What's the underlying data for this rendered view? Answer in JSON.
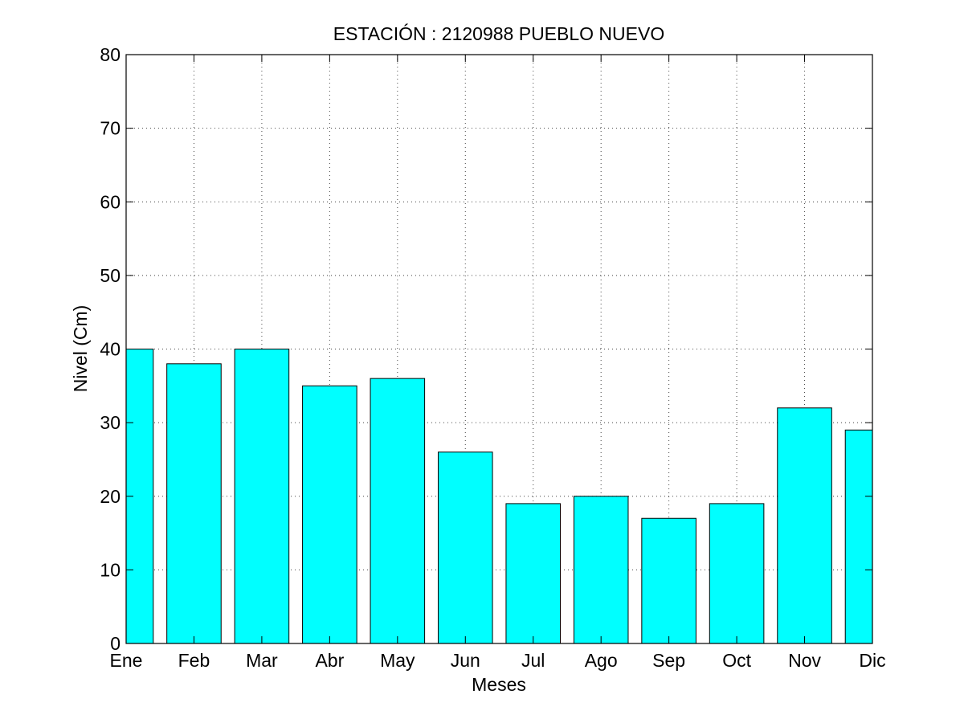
{
  "chart_data": {
    "type": "bar",
    "title": "ESTACIÓN :  2120988  PUEBLO NUEVO",
    "xlabel": "Meses",
    "ylabel": "Nivel (Cm)",
    "categories": [
      "Ene",
      "Feb",
      "Mar",
      "Abr",
      "May",
      "Jun",
      "Jul",
      "Ago",
      "Sep",
      "Oct",
      "Nov",
      "Dic"
    ],
    "values": [
      40,
      38,
      40,
      35,
      36,
      26,
      19,
      20,
      17,
      19,
      32,
      29
    ],
    "ylim": [
      0,
      80
    ],
    "yticks": [
      0,
      10,
      20,
      30,
      40,
      50,
      60,
      70,
      80
    ],
    "xlim": [
      1,
      12
    ],
    "grid": true,
    "colors": {
      "bar": "#00FFFF",
      "edge": "#000000",
      "grid": "#444444"
    }
  }
}
